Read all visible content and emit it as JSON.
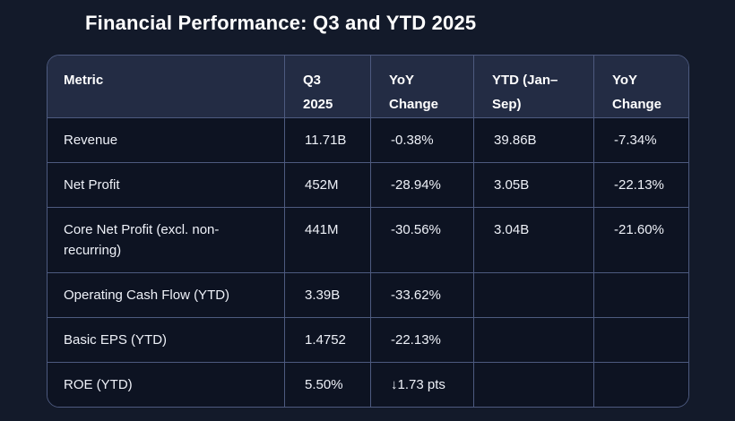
{
  "page": {
    "title": "Financial Performance: Q3 and YTD 2025"
  },
  "chart_data": {
    "type": "table",
    "title": "Financial Performance: Q3 and YTD 2025",
    "columns": [
      "Metric",
      "Q3 2025",
      "YoY Change",
      "YTD (Jan–Sep)",
      "YoY Change"
    ],
    "rows": [
      [
        "Revenue",
        "11.71B",
        "-0.38%",
        "39.86B",
        "-7.34%"
      ],
      [
        "Net Profit",
        "452M",
        "-28.94%",
        "3.05B",
        "-22.13%"
      ],
      [
        "Core Net Profit (excl. non-recurring)",
        "441M",
        "-30.56%",
        "3.04B",
        "-21.60%"
      ],
      [
        "Operating Cash Flow (YTD)",
        "3.39B",
        "-33.62%",
        "",
        ""
      ],
      [
        "Basic EPS (YTD)",
        "1.4752",
        "-22.13%",
        "",
        ""
      ],
      [
        "ROE (YTD)",
        "5.50%",
        "↓1.73 pts",
        "",
        ""
      ]
    ],
    "notes": "Empty strings represent blank YTD cells for YTD-only metrics; ROE YoY change shown with down-arrow glyph"
  },
  "colors": {
    "page_background": "#131a2a",
    "header_background": "#232c44",
    "cell_background": "#0d1322",
    "border": "#4d5a7f",
    "text": "#eef1f8",
    "title": "#ffffff"
  }
}
